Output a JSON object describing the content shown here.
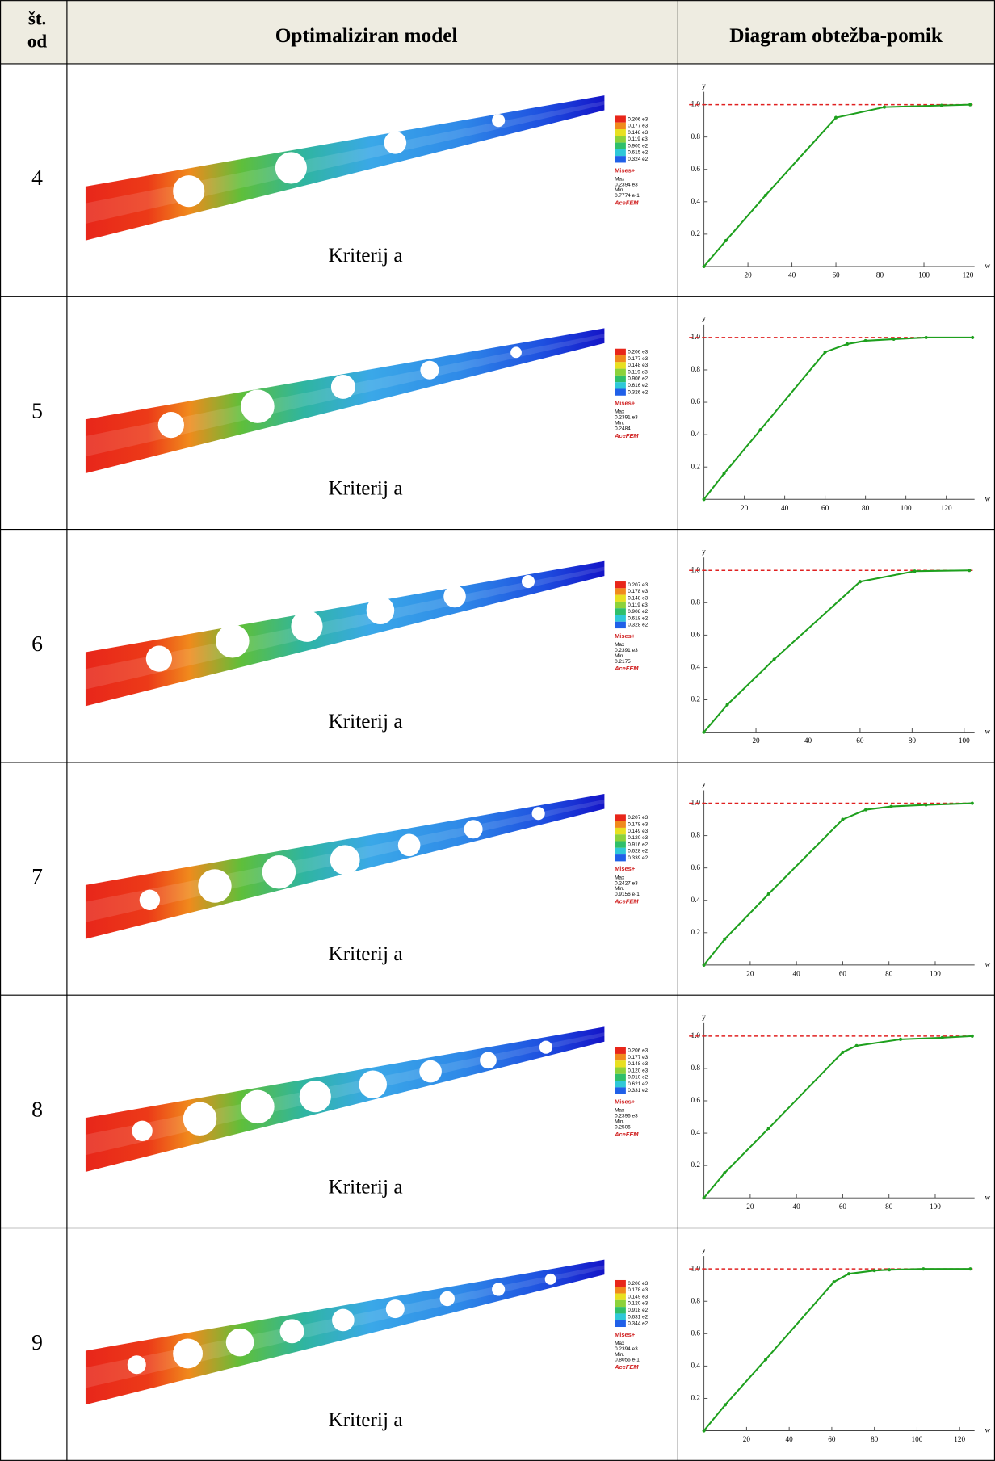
{
  "header": {
    "number": [
      "št.",
      "od"
    ],
    "model": "Optimaliziran model",
    "diagram": "Diagram obtežba-pomik"
  },
  "rows": [
    {
      "number": 4,
      "model": {
        "caption": "Kriterij a",
        "legend": {
          "values": [
            "0.206 e3",
            "0.177 e3",
            "0.148 e3",
            "0.119 e3",
            "0.905 e2",
            "0.615 e2",
            "0.324 e2"
          ],
          "quantity": "Mises+",
          "max_label": "Max",
          "max": "0.2394 e3",
          "min_label": "Min.",
          "min": "0.7774 e-1",
          "software": "AceFEM"
        }
      }
    },
    {
      "number": 5,
      "model": {
        "caption": "Kriterij a",
        "legend": {
          "values": [
            "0.206 e3",
            "0.177 e3",
            "0.148 e3",
            "0.119 e3",
            "0.906 e2",
            "0.616 e2",
            "0.326 e2"
          ],
          "quantity": "Mises+",
          "max_label": "Max",
          "max": "0.2391 e3",
          "min_label": "Min.",
          "min": "0.2484",
          "software": "AceFEM"
        }
      }
    },
    {
      "number": 6,
      "model": {
        "caption": "Kriterij a",
        "legend": {
          "values": [
            "0.207 e3",
            "0.178 e3",
            "0.148 e3",
            "0.119 e3",
            "0.908 e2",
            "0.618 e2",
            "0.328 e2"
          ],
          "quantity": "Mises+",
          "max_label": "Max",
          "max": "0.2391 e3",
          "min_label": "Min.",
          "min": "0.2175",
          "software": "AceFEM"
        }
      }
    },
    {
      "number": 7,
      "model": {
        "caption": "Kriterij a",
        "legend": {
          "values": [
            "0.207 e3",
            "0.178 e3",
            "0.149 e3",
            "0.120 e3",
            "0.916 e2",
            "0.628 e2",
            "0.339 e2"
          ],
          "quantity": "Mises+",
          "max_label": "Max",
          "max": "0.2427 e3",
          "min_label": "Min.",
          "min": "0.9156 e-1",
          "software": "AceFEM"
        }
      }
    },
    {
      "number": 8,
      "model": {
        "caption": "Kriterij a",
        "legend": {
          "values": [
            "0.206 e3",
            "0.177 e3",
            "0.148 e3",
            "0.120 e3",
            "0.910 e2",
            "0.621 e2",
            "0.331 e2"
          ],
          "quantity": "Mises+",
          "max_label": "Max",
          "max": "0.2396 e3",
          "min_label": "Min.",
          "min": "0.2506",
          "software": "AceFEM"
        }
      }
    },
    {
      "number": 9,
      "model": {
        "caption": "Kriterij a",
        "legend": {
          "values": [
            "0.206 e3",
            "0.178 e3",
            "0.149 e3",
            "0.120 e3",
            "0.918 e2",
            "0.631 e2",
            "0.344 e2"
          ],
          "quantity": "Mises+",
          "max_label": "Max",
          "max": "0.2394 e3",
          "min_label": "Min.",
          "min": "0.8056 e-1",
          "software": "AceFEM"
        }
      }
    }
  ],
  "chart_data": [
    {
      "type": "line",
      "x_label": "w",
      "y_label": "y",
      "x": [
        0,
        10,
        28,
        60,
        82,
        108,
        121
      ],
      "series": [
        {
          "color": "#1ea01e",
          "values": [
            0,
            0.16,
            0.44,
            0.92,
            0.985,
            0.995,
            1.0
          ]
        }
      ],
      "reference_line": {
        "value": 1.0,
        "color": "#e02020"
      },
      "xlim": [
        0,
        123
      ],
      "ylim": [
        0,
        1.08
      ],
      "xticks": [
        20,
        40,
        60,
        80,
        100,
        120
      ],
      "yticks": [
        0.2,
        0.4,
        0.6,
        0.8,
        {
          "value": 1.0,
          "label": "1.0"
        }
      ]
    },
    {
      "type": "line",
      "x_label": "w",
      "y_label": "y",
      "x": [
        0,
        10,
        28,
        60,
        71,
        80,
        94,
        110,
        133
      ],
      "series": [
        {
          "color": "#1ea01e",
          "values": [
            0,
            0.16,
            0.43,
            0.91,
            0.96,
            0.98,
            0.99,
            1.0,
            1.0
          ]
        }
      ],
      "reference_line": {
        "value": 1.0,
        "color": "#e02020"
      },
      "xlim": [
        0,
        134
      ],
      "ylim": [
        0,
        1.08
      ],
      "xticks": [
        20,
        40,
        60,
        80,
        100,
        120
      ],
      "yticks": [
        0.2,
        0.4,
        0.6,
        0.8,
        {
          "value": 1.0,
          "label": "1.0"
        }
      ]
    },
    {
      "type": "line",
      "x_label": "w",
      "y_label": "y",
      "x": [
        0,
        9,
        27,
        60,
        81,
        102
      ],
      "series": [
        {
          "color": "#1ea01e",
          "values": [
            0,
            0.17,
            0.45,
            0.93,
            0.995,
            1.0
          ]
        }
      ],
      "reference_line": {
        "value": 1.0,
        "color": "#e02020"
      },
      "xlim": [
        0,
        104
      ],
      "ylim": [
        0,
        1.08
      ],
      "xticks": [
        20,
        40,
        60,
        80,
        100
      ],
      "yticks": [
        0.2,
        0.4,
        0.6,
        0.8,
        {
          "value": 1.0,
          "label": "1.0"
        }
      ]
    },
    {
      "type": "line",
      "x_label": "w",
      "y_label": "y",
      "x": [
        0,
        9,
        28,
        60,
        70,
        81,
        96,
        116
      ],
      "series": [
        {
          "color": "#1ea01e",
          "values": [
            0,
            0.16,
            0.44,
            0.9,
            0.96,
            0.98,
            0.99,
            1.0
          ]
        }
      ],
      "reference_line": {
        "value": 1.0,
        "color": "#e02020"
      },
      "xlim": [
        0,
        117
      ],
      "ylim": [
        0,
        1.08
      ],
      "xticks": [
        20,
        40,
        60,
        80,
        100
      ],
      "yticks": [
        0.2,
        0.4,
        0.6,
        0.8,
        {
          "value": 1.0,
          "label": "1.0"
        }
      ]
    },
    {
      "type": "line",
      "x_label": "w",
      "y_label": "y",
      "x": [
        0,
        9,
        28,
        60,
        66,
        85,
        103,
        116
      ],
      "series": [
        {
          "color": "#1ea01e",
          "values": [
            0,
            0.155,
            0.43,
            0.9,
            0.94,
            0.98,
            0.99,
            1.0
          ]
        }
      ],
      "reference_line": {
        "value": 1.0,
        "color": "#e02020"
      },
      "xlim": [
        0,
        117
      ],
      "ylim": [
        0,
        1.08
      ],
      "xticks": [
        20,
        40,
        60,
        80,
        100
      ],
      "yticks": [
        0.2,
        0.4,
        0.6,
        0.8,
        {
          "value": 1.0,
          "label": "1.0"
        }
      ]
    },
    {
      "type": "line",
      "x_label": "w",
      "y_label": "y",
      "x": [
        0,
        10,
        29,
        61,
        68,
        80,
        87,
        103,
        125
      ],
      "series": [
        {
          "color": "#1ea01e",
          "values": [
            0,
            0.16,
            0.44,
            0.92,
            0.97,
            0.99,
            0.995,
            1.0,
            1.0
          ]
        }
      ],
      "reference_line": {
        "value": 1.0,
        "color": "#e02020"
      },
      "xlim": [
        0,
        127
      ],
      "ylim": [
        0,
        1.08
      ],
      "xticks": [
        20,
        40,
        60,
        80,
        100,
        120
      ],
      "yticks": [
        0.2,
        0.4,
        0.6,
        0.8,
        {
          "value": 1.0,
          "label": "1.0"
        }
      ]
    }
  ]
}
